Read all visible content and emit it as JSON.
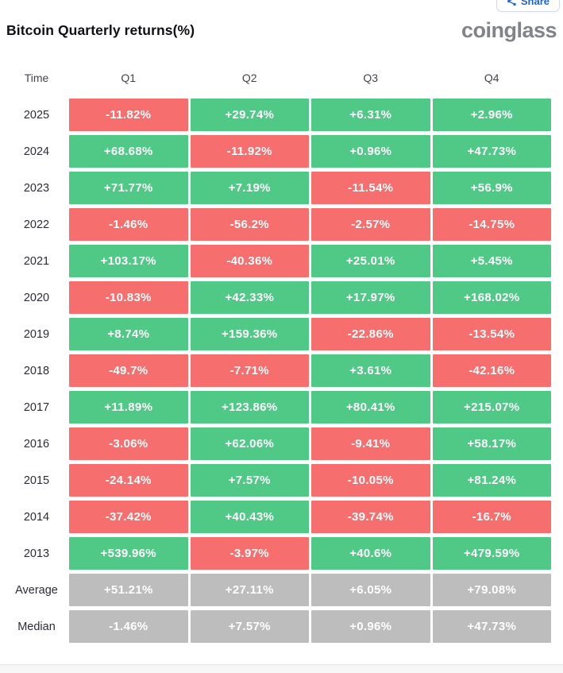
{
  "toolbar": {
    "share_label": "Share"
  },
  "header": {
    "title": "Bitcoin Quarterly returns(%)",
    "logo_text": "coinglass"
  },
  "chart_data": {
    "type": "table",
    "title": "Bitcoin Quarterly returns(%)",
    "columns": [
      "Time",
      "Q1",
      "Q2",
      "Q3",
      "Q4"
    ],
    "rows": [
      {
        "label": "2025",
        "kind": "year",
        "values": [
          "-11.82%",
          "+29.74%",
          "+6.31%",
          "+2.96%"
        ]
      },
      {
        "label": "2024",
        "kind": "year",
        "values": [
          "+68.68%",
          "-11.92%",
          "+0.96%",
          "+47.73%"
        ]
      },
      {
        "label": "2023",
        "kind": "year",
        "values": [
          "+71.77%",
          "+7.19%",
          "-11.54%",
          "+56.9%"
        ]
      },
      {
        "label": "2022",
        "kind": "year",
        "values": [
          "-1.46%",
          "-56.2%",
          "-2.57%",
          "-14.75%"
        ]
      },
      {
        "label": "2021",
        "kind": "year",
        "values": [
          "+103.17%",
          "-40.36%",
          "+25.01%",
          "+5.45%"
        ]
      },
      {
        "label": "2020",
        "kind": "year",
        "values": [
          "-10.83%",
          "+42.33%",
          "+17.97%",
          "+168.02%"
        ]
      },
      {
        "label": "2019",
        "kind": "year",
        "values": [
          "+8.74%",
          "+159.36%",
          "-22.86%",
          "-13.54%"
        ]
      },
      {
        "label": "2018",
        "kind": "year",
        "values": [
          "-49.7%",
          "-7.71%",
          "+3.61%",
          "-42.16%"
        ]
      },
      {
        "label": "2017",
        "kind": "year",
        "values": [
          "+11.89%",
          "+123.86%",
          "+80.41%",
          "+215.07%"
        ]
      },
      {
        "label": "2016",
        "kind": "year",
        "values": [
          "-3.06%",
          "+62.06%",
          "-9.41%",
          "+58.17%"
        ]
      },
      {
        "label": "2015",
        "kind": "year",
        "values": [
          "-24.14%",
          "+7.57%",
          "-10.05%",
          "+81.24%"
        ]
      },
      {
        "label": "2014",
        "kind": "year",
        "values": [
          "-37.42%",
          "+40.43%",
          "-39.74%",
          "-16.7%"
        ]
      },
      {
        "label": "2013",
        "kind": "year",
        "values": [
          "+539.96%",
          "-3.97%",
          "+40.6%",
          "+479.59%"
        ]
      },
      {
        "label": "Average",
        "kind": "summary",
        "values": [
          "+51.21%",
          "+27.11%",
          "+6.05%",
          "+79.08%"
        ]
      },
      {
        "label": "Median",
        "kind": "summary",
        "values": [
          "-1.46%",
          "+7.57%",
          "+0.96%",
          "+47.73%"
        ]
      }
    ],
    "colors": {
      "positive": "#50c986",
      "negative": "#f66f6e",
      "summary": "#bdbdbd",
      "share_blue": "#1e63d0",
      "logo_gray": "#82828a"
    },
    "legend_note": "green = positive quarter, red = negative quarter, gray = summary rows"
  }
}
